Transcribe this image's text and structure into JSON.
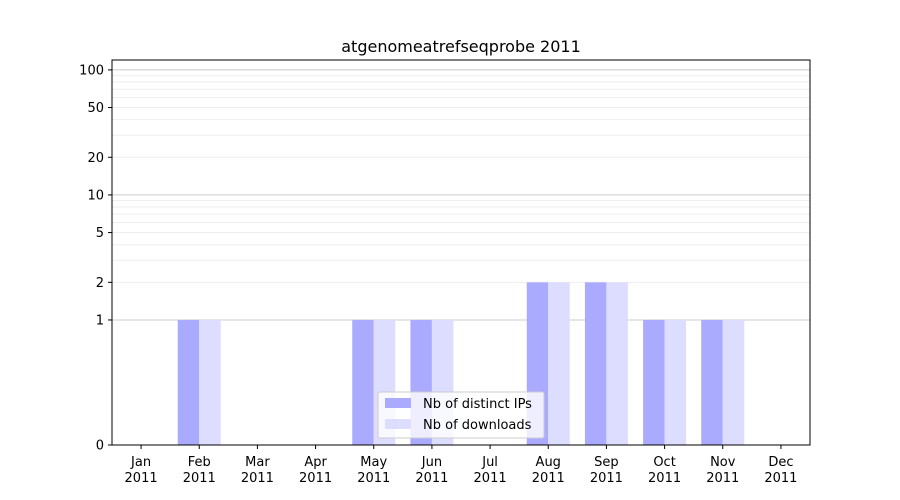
{
  "chart_data": {
    "type": "bar",
    "title": "atgenomeatrefseqprobe 2011",
    "xlabel": "",
    "ylabel": "",
    "y_scale": "symlog",
    "ylim": [
      0,
      120
    ],
    "y_ticks": [
      0,
      1,
      2,
      5,
      10,
      20,
      50,
      100
    ],
    "y_tick_labels": [
      "0",
      "1",
      "2",
      "5",
      "10",
      "20",
      "50",
      "100"
    ],
    "categories": [
      [
        "Jan",
        "2011"
      ],
      [
        "Feb",
        "2011"
      ],
      [
        "Mar",
        "2011"
      ],
      [
        "Apr",
        "2011"
      ],
      [
        "May",
        "2011"
      ],
      [
        "Jun",
        "2011"
      ],
      [
        "Jul",
        "2011"
      ],
      [
        "Aug",
        "2011"
      ],
      [
        "Sep",
        "2011"
      ],
      [
        "Oct",
        "2011"
      ],
      [
        "Nov",
        "2011"
      ],
      [
        "Dec",
        "2011"
      ]
    ],
    "series": [
      {
        "name": "Nb of distinct IPs",
        "color": "#aaaaff",
        "values": [
          0,
          1,
          0,
          0,
          1,
          1,
          0,
          2,
          2,
          1,
          1,
          0
        ]
      },
      {
        "name": "Nb of downloads",
        "color": "#ddddff",
        "values": [
          0,
          1,
          0,
          0,
          1,
          1,
          0,
          2,
          2,
          1,
          1,
          0
        ]
      }
    ],
    "grid": true,
    "legend_position": "bottom-center"
  }
}
